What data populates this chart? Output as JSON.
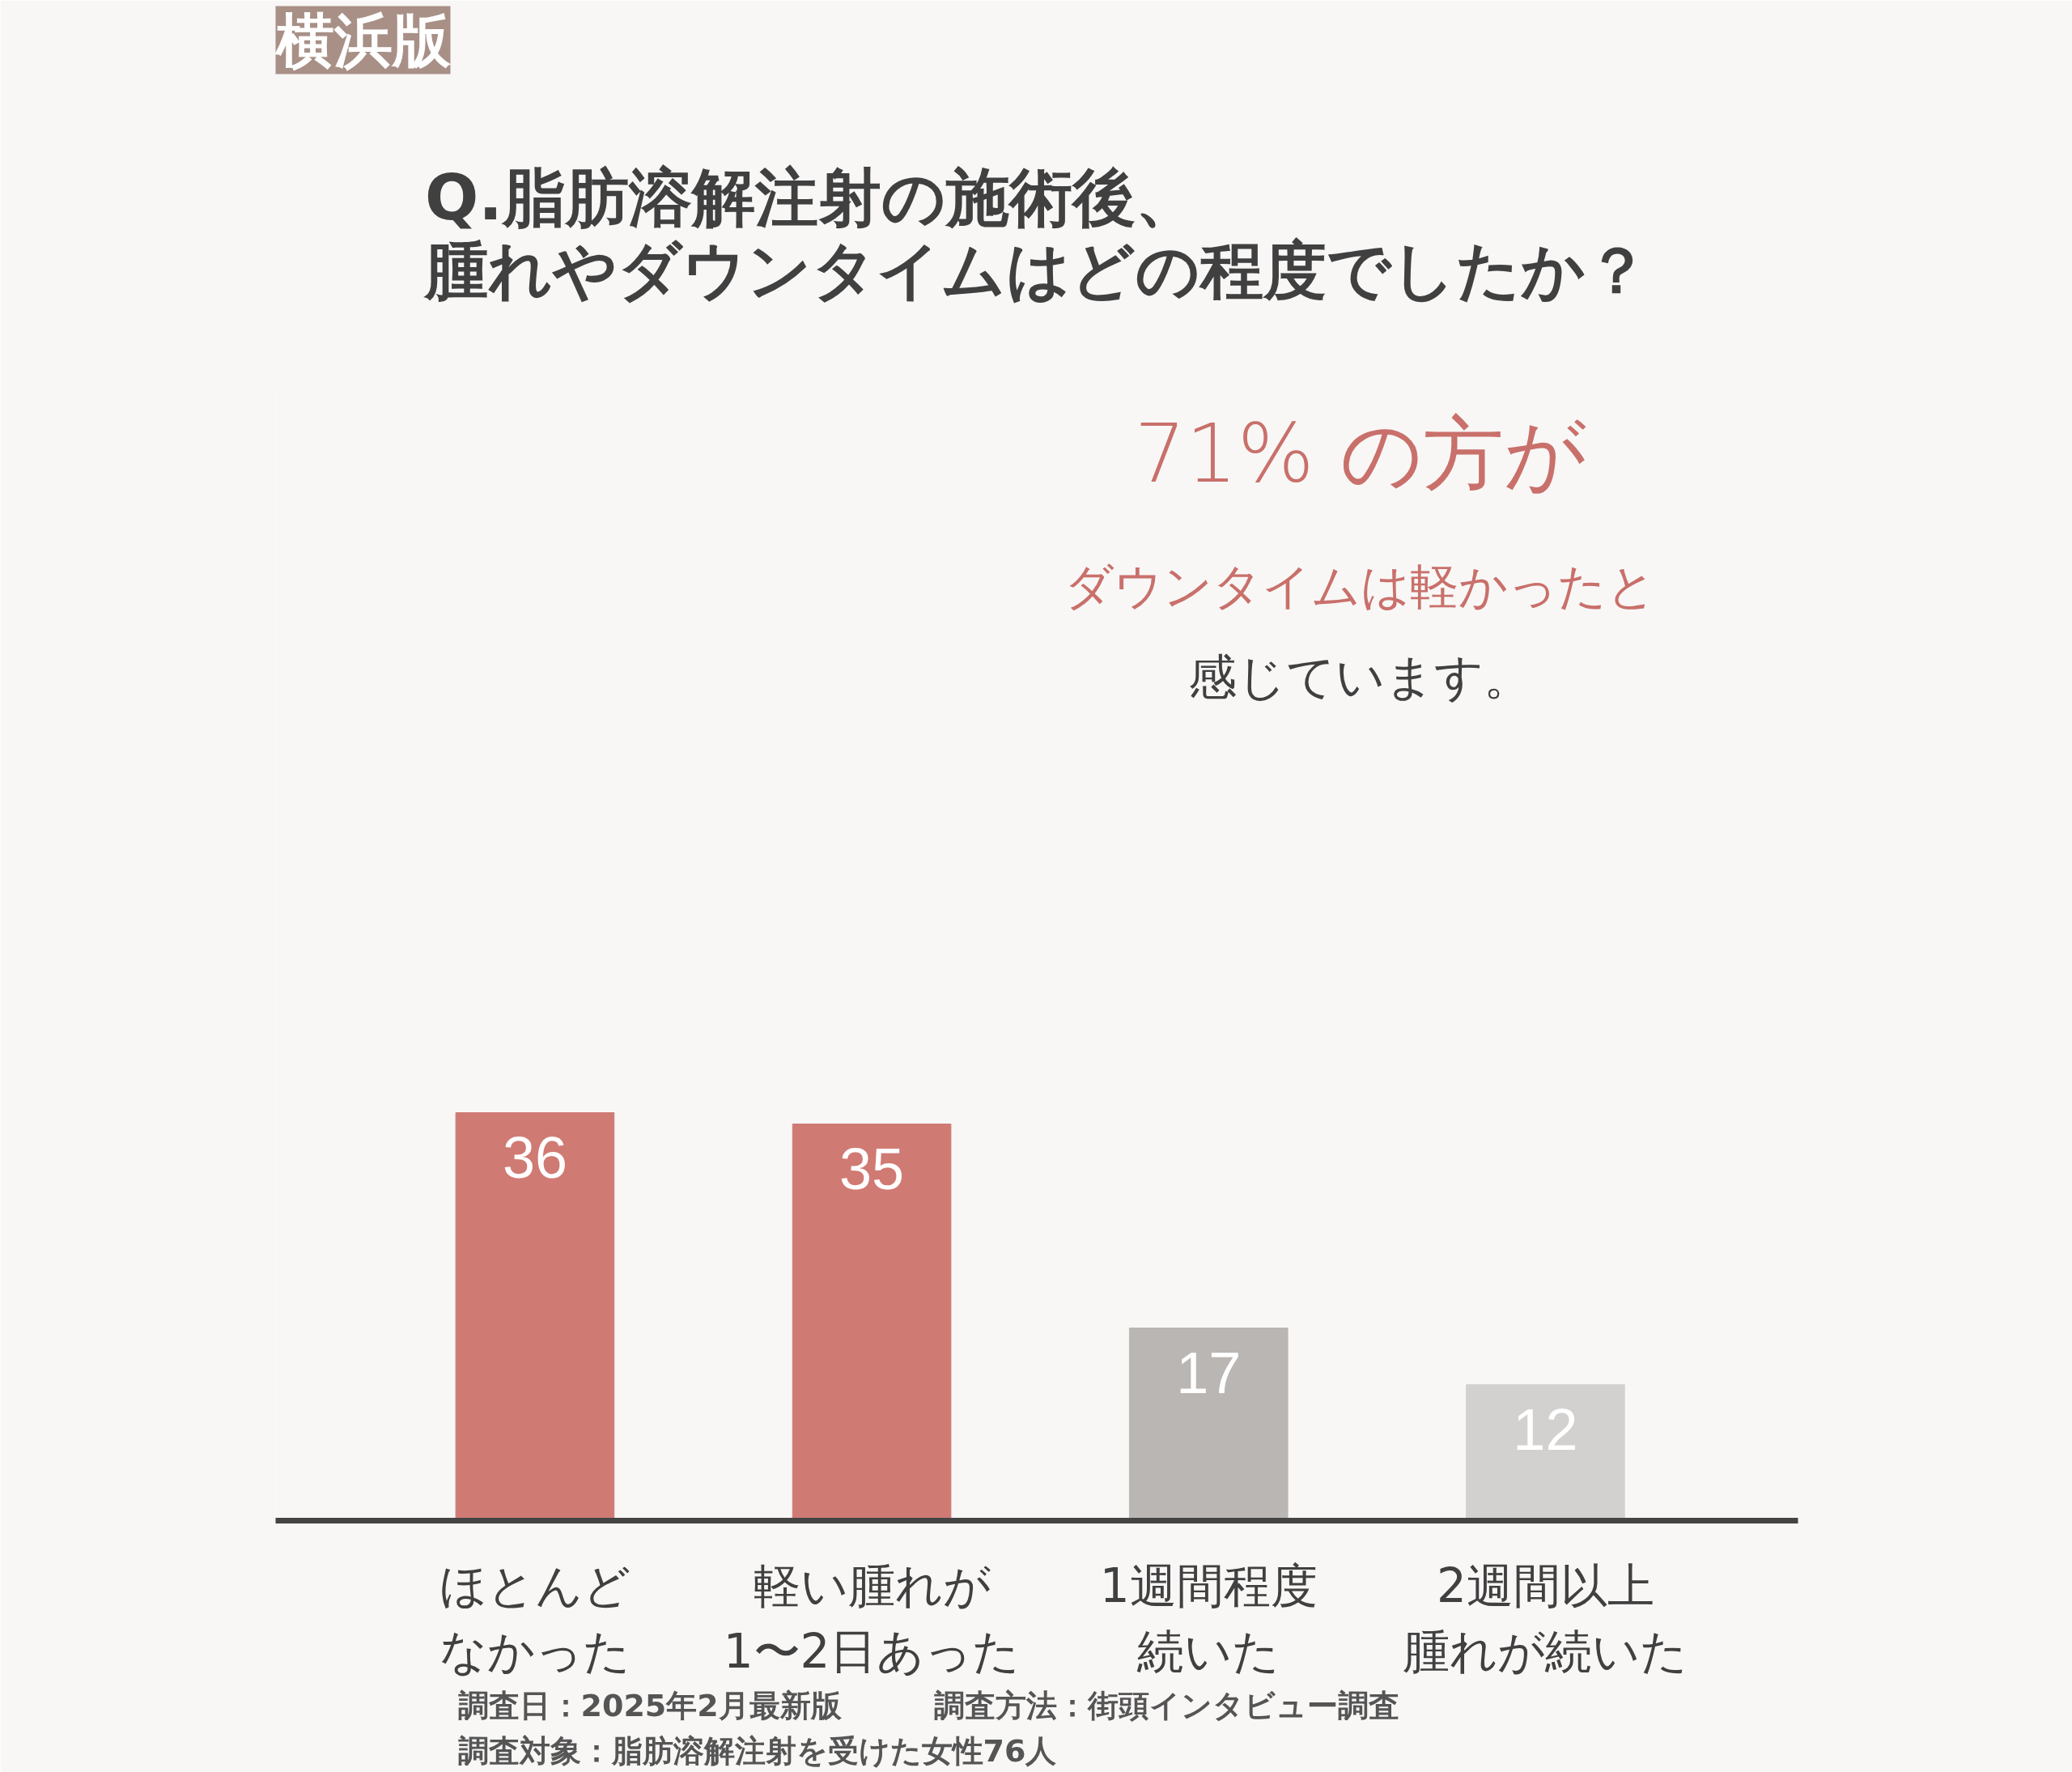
{
  "chart_data": {
    "type": "bar",
    "title": "Q.脂肪溶解注射の施術後、腫れやダウンタイムはどの程度でしたか？",
    "categories": [
      "ほとんどなかった",
      "軽い腫れが1〜2日あった",
      "1週間程度続いた",
      "2週間以上腫れが続いた"
    ],
    "values": [
      36,
      35,
      17,
      12
    ],
    "colors": [
      "#d07a74",
      "#d07a74",
      "#b9b6b3",
      "#d3d1cf"
    ],
    "ylim": [
      0,
      100
    ],
    "data_labels": true,
    "grid": false,
    "annotations": [
      "横浜版",
      "71% の方が",
      "ダウンタイムは軽かったと",
      "感じています。",
      "調査日：2025年2月最新版",
      "調査方法：街頭インタビュー調査",
      "調査対象：脂肪溶解注射を受けた女性76人"
    ]
  }
}
